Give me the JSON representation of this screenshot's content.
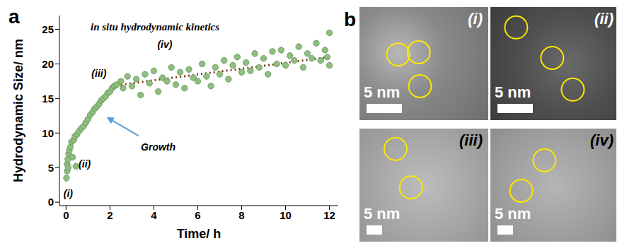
{
  "panel_label": "a",
  "chart_data": {
    "type": "scatter",
    "title": "in situ hydrodynamic kinetics",
    "x_label": "Time/ h",
    "y_label": "Hydrodynamic Size/ nm",
    "xlim": [
      -0.3,
      12.4
    ],
    "xticks": [
      0,
      2,
      4,
      6,
      8,
      10,
      12
    ],
    "ylim": [
      -0.5,
      27
    ],
    "yticks": [
      0,
      5,
      10,
      15,
      20,
      25
    ],
    "grid": false,
    "series": [
      {
        "type": "scatter",
        "marker": "circle",
        "color": "#8fbf7f",
        "x": [
          0.02,
          0.05,
          0.05,
          0.08,
          0.1,
          0.12,
          0.15,
          0.2,
          0.25,
          0.3,
          0.35,
          0.4,
          0.45,
          0.5,
          0.6,
          0.7,
          0.8,
          0.9,
          1.0,
          1.1,
          1.2,
          1.3,
          1.4,
          1.5,
          1.6,
          1.7,
          1.8,
          1.9,
          2.0,
          2.1,
          2.2,
          2.3,
          2.5,
          2.6,
          2.8,
          3.0,
          3.2,
          3.4,
          3.6,
          3.8,
          4.0,
          4.2,
          4.4,
          4.6,
          4.8,
          5.0,
          5.2,
          5.4,
          5.6,
          5.8,
          6.0,
          6.2,
          6.4,
          6.6,
          6.8,
          7.0,
          7.2,
          7.4,
          7.6,
          7.8,
          8.0,
          8.2,
          8.4,
          8.6,
          8.8,
          9.0,
          9.2,
          9.4,
          9.6,
          9.8,
          10.0,
          10.2,
          10.4,
          10.6,
          10.8,
          11.0,
          11.2,
          11.4,
          11.6,
          11.8,
          12.0,
          11.9,
          12.0
        ],
        "values": [
          3.5,
          4.5,
          5.5,
          6.2,
          5.0,
          7.0,
          7.5,
          8.0,
          8.7,
          6.5,
          9.0,
          9.5,
          5.2,
          9.8,
          10.3,
          10.7,
          11.0,
          11.5,
          12.0,
          12.6,
          13.0,
          13.5,
          13.8,
          14.2,
          14.7,
          15.0,
          15.3,
          15.8,
          16.0,
          16.5,
          16.8,
          17.0,
          17.5,
          16.5,
          18.2,
          16.8,
          17.8,
          15.5,
          18.5,
          17.2,
          19.0,
          16.0,
          18.0,
          17.5,
          19.5,
          17.0,
          18.8,
          16.5,
          19.2,
          18.0,
          17.5,
          20.0,
          18.2,
          16.8,
          19.5,
          18.5,
          20.5,
          17.8,
          19.8,
          21.0,
          18.8,
          20.2,
          19.0,
          21.5,
          19.5,
          20.8,
          18.5,
          21.8,
          20.0,
          22.0,
          19.8,
          21.2,
          20.5,
          22.5,
          19.5,
          21.5,
          20.8,
          23.0,
          20.5,
          22.0,
          24.5,
          21.0,
          19.8
        ]
      },
      {
        "type": "line",
        "line_style": "dotted",
        "color": "#e08a3c",
        "x": [
          0,
          0.25,
          0.5,
          0.75,
          1,
          1.25,
          1.5,
          1.75,
          2,
          2.25,
          2.5
        ],
        "values": [
          3,
          8.3,
          9.8,
          10.9,
          12,
          13.1,
          14.2,
          15.1,
          15.9,
          16.5,
          17
        ]
      },
      {
        "type": "line",
        "line_style": "dotted",
        "color": "#7a3b1a",
        "x": [
          2.5,
          12
        ],
        "values": [
          17,
          21
        ]
      }
    ],
    "annotations": [
      {
        "text": "(i)",
        "x": 0.1,
        "y": 1.2
      },
      {
        "text": "(ii)",
        "x": 0.85,
        "y": 5.5
      },
      {
        "text": "(iii)",
        "x": 1.5,
        "y": 18.6
      },
      {
        "text": "(iv)",
        "x": 4.5,
        "y": 22.8
      },
      {
        "text": "Growth",
        "x": 4.2,
        "y": 8.0,
        "arrow_from": [
          3.3,
          9.6
        ],
        "arrow_to": [
          1.85,
          12.3
        ]
      }
    ]
  },
  "image_panel": {
    "panel_label": "b",
    "images": [
      {
        "label": "(i)",
        "scale_bar": "5 nm"
      },
      {
        "label": "(ii)",
        "scale_bar": "5 nm"
      },
      {
        "label": "(iii)",
        "scale_bar": "5 nm"
      },
      {
        "label": "(iv)",
        "scale_bar": "5 nm"
      }
    ]
  }
}
